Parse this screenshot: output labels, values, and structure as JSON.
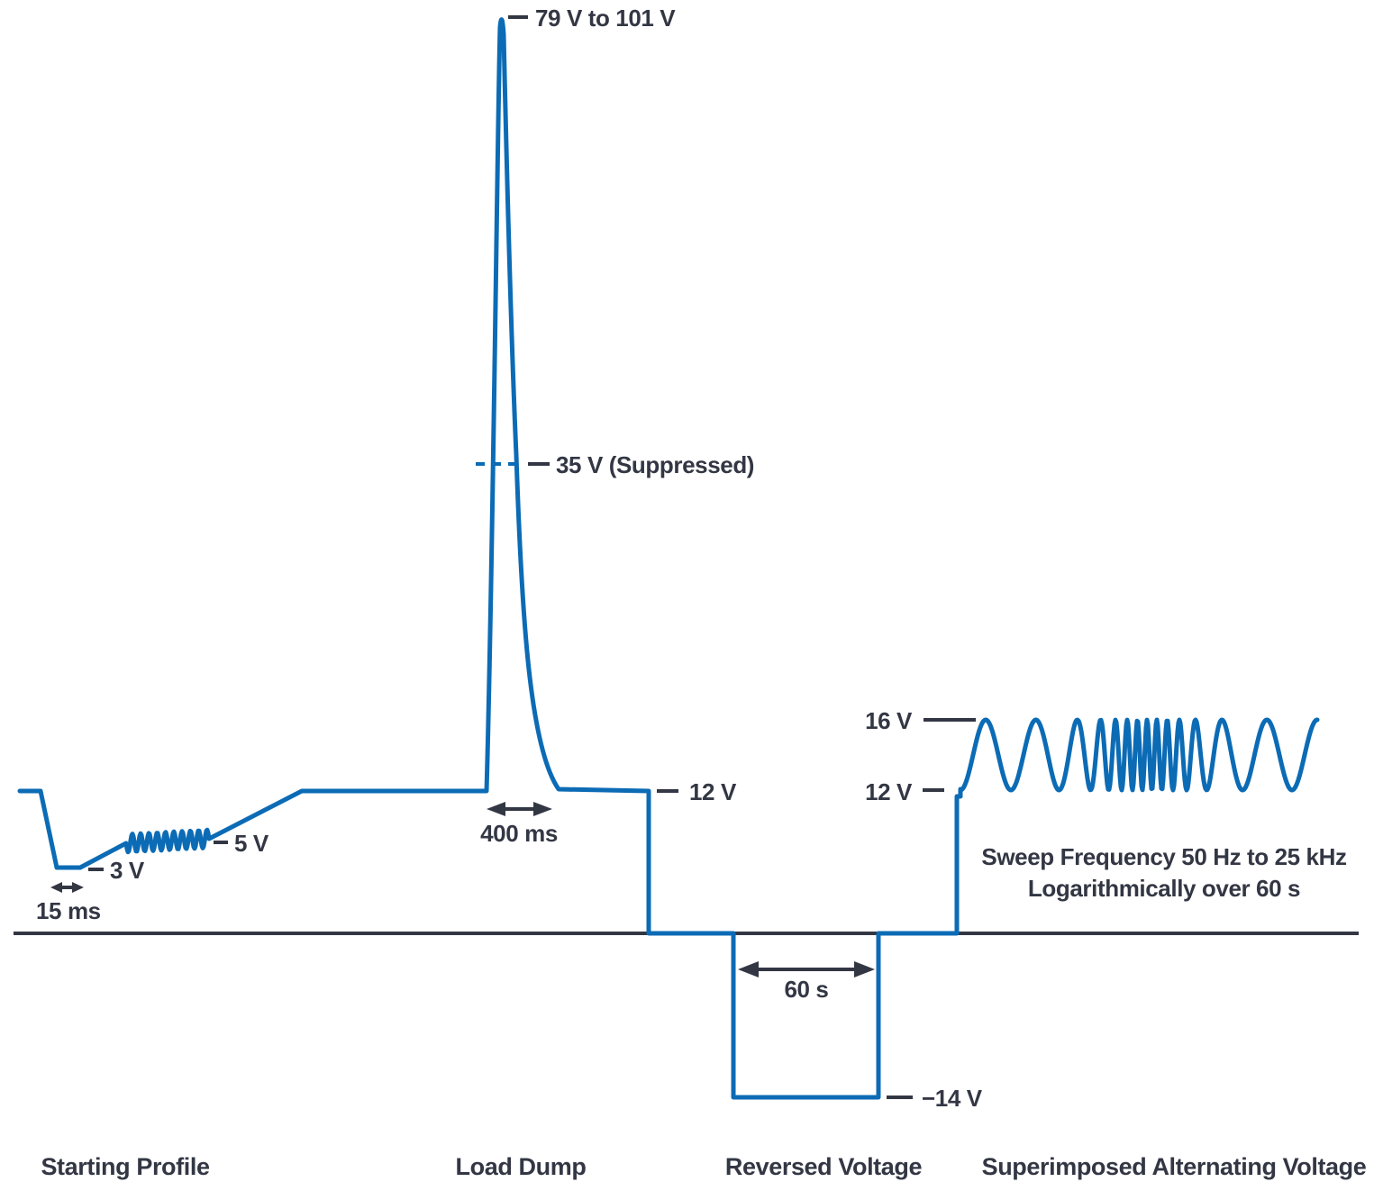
{
  "figure": {
    "colors": {
      "trace": "#0C6BB5",
      "ink": "#333744",
      "background": "#FFFFFF"
    },
    "annotations": {
      "peak_range": "79 V to 101 V",
      "suppressed_level": "35 V (Suppressed)",
      "nominal_after_dump": "12 V",
      "dump_duration": "400 ms",
      "start_min": "3 V",
      "start_ripple_level": "5 V",
      "start_dip_duration": "15 ms",
      "sav_peak": "16 V",
      "sav_nominal": "12 V",
      "reverse_duration": "60 s",
      "reverse_level": "−14 V",
      "sweep_line1": "Sweep Frequency 50 Hz to 25 kHz",
      "sweep_line2": "Logarithmically over 60 s"
    },
    "section_labels": [
      {
        "label": "Starting Profile"
      },
      {
        "label": "Load Dump"
      },
      {
        "label": "Reversed Voltage"
      },
      {
        "label": "Superimposed Alternating Voltage"
      }
    ],
    "waveform": {
      "type": "voltage-vs-time profile",
      "segments": [
        {
          "section": "Starting Profile",
          "nominal_v": 12,
          "dip_min_v": 3,
          "dip_duration": "15 ms",
          "ripple_level_v": 5
        },
        {
          "section": "Load Dump",
          "base_v": 12,
          "peak_v": "79 to 101",
          "suppressed_v": 35,
          "duration": "400 ms"
        },
        {
          "section": "Reversed Voltage",
          "level_v": -14,
          "duration": "60 s"
        },
        {
          "section": "Superimposed Alternating Voltage",
          "base_v": 12,
          "peak_v": 16,
          "sweep": "50 Hz to 25 kHz logarithmically over 60 s"
        }
      ]
    }
  }
}
